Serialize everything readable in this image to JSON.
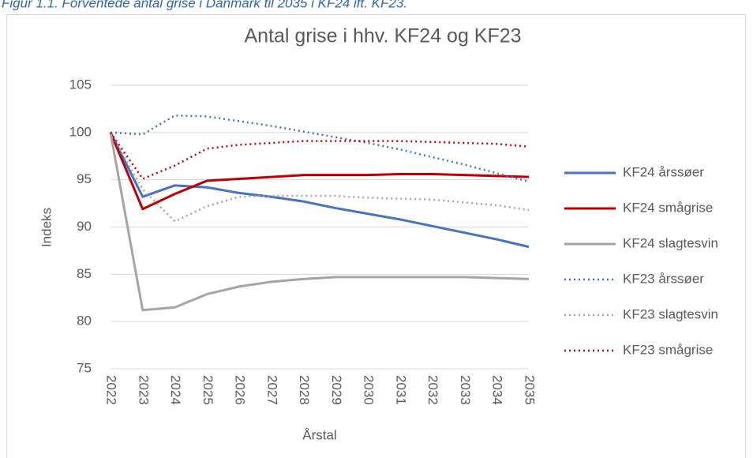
{
  "chart_data": {
    "type": "line",
    "caption": "Figur 1.1. Forventede antal grise i Danmark til 2035 i KF24 ift. KF23.",
    "title": "Antal grise i hhv. KF24 og KF23",
    "x_label": "Årstal",
    "y_label": "Indeks",
    "categories": [
      "2022",
      "2023",
      "2024",
      "2025",
      "2026",
      "2027",
      "2028",
      "2029",
      "2030",
      "2031",
      "2032",
      "2033",
      "2034",
      "2035"
    ],
    "ylim": [
      75,
      105
    ],
    "yticks": [
      75,
      80,
      85,
      90,
      95,
      100,
      105
    ],
    "grid": true,
    "legend": "right",
    "series": [
      {
        "name": "KF24 årssøer",
        "color": "#4472c4",
        "style": "solid",
        "values": [
          100,
          93.2,
          94.4,
          94.2,
          93.6,
          93.2,
          92.7,
          92.0,
          91.4,
          90.8,
          90.1,
          89.4,
          88.7,
          87.9
        ]
      },
      {
        "name": "KF24 smågrise",
        "color": "#c00000",
        "style": "solid",
        "values": [
          100,
          91.9,
          93.5,
          94.9,
          95.1,
          95.3,
          95.5,
          95.5,
          95.5,
          95.6,
          95.6,
          95.5,
          95.4,
          95.3
        ]
      },
      {
        "name": "KF24 slagtesvin",
        "color": "#a5a5a5",
        "style": "solid",
        "values": [
          100,
          81.2,
          81.5,
          82.9,
          83.7,
          84.2,
          84.5,
          84.7,
          84.7,
          84.7,
          84.7,
          84.7,
          84.6,
          84.5
        ]
      },
      {
        "name": "KF23 årssøer",
        "color": "#4472c4",
        "style": "dotted",
        "values": [
          100,
          99.8,
          101.8,
          101.7,
          101.2,
          100.7,
          100.1,
          99.5,
          98.9,
          98.2,
          97.4,
          96.6,
          95.7,
          94.8
        ]
      },
      {
        "name": "KF23 slagtesvin",
        "color": "#a5a5a5",
        "style": "dotted",
        "values": [
          100,
          94.0,
          90.6,
          92.2,
          93.2,
          93.3,
          93.3,
          93.3,
          93.1,
          93.0,
          92.9,
          92.6,
          92.3,
          91.8
        ]
      },
      {
        "name": "KF23 smågrise",
        "color": "#c00000",
        "style": "dotted",
        "values": [
          100,
          95.1,
          96.5,
          98.3,
          98.7,
          98.9,
          99.1,
          99.1,
          99.1,
          99.1,
          99.0,
          98.9,
          98.8,
          98.5
        ]
      }
    ]
  }
}
